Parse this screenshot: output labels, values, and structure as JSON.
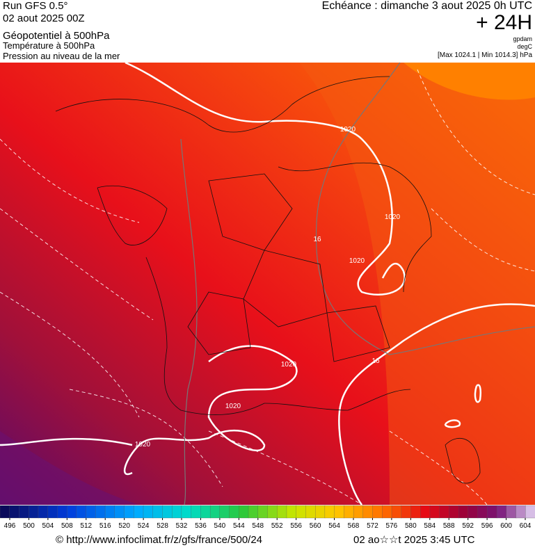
{
  "header": {
    "run": "Run GFS 0.5°",
    "date": "02 aout 2025 00Z",
    "title": "Géopotentiel à 500hPa",
    "line2": "Température à 500hPa",
    "line3": "Pression au niveau de la mer",
    "echeance": "Echéance : dimanche 3 aout 2025 0h UTC",
    "lead": "+ 24H",
    "unit1": "gpdam",
    "unit2": "degC",
    "range": "[Max 1024.1 | Min 1014.3] hPa"
  },
  "map": {
    "contour_labels": [
      "1020",
      "1020",
      "1020",
      "1020",
      "1020",
      "1020",
      "16",
      "16"
    ]
  },
  "colorbar": {
    "ticks": [
      496,
      500,
      504,
      508,
      512,
      516,
      520,
      524,
      528,
      532,
      536,
      540,
      544,
      548,
      552,
      556,
      560,
      564,
      568,
      572,
      576,
      580,
      584,
      588,
      592,
      596,
      600,
      604
    ]
  },
  "footer": {
    "url": "© http://www.infoclimat.fr/z/gfs/france/500/24",
    "time": "02 ao☆☆t 2025  3:45 UTC"
  }
}
